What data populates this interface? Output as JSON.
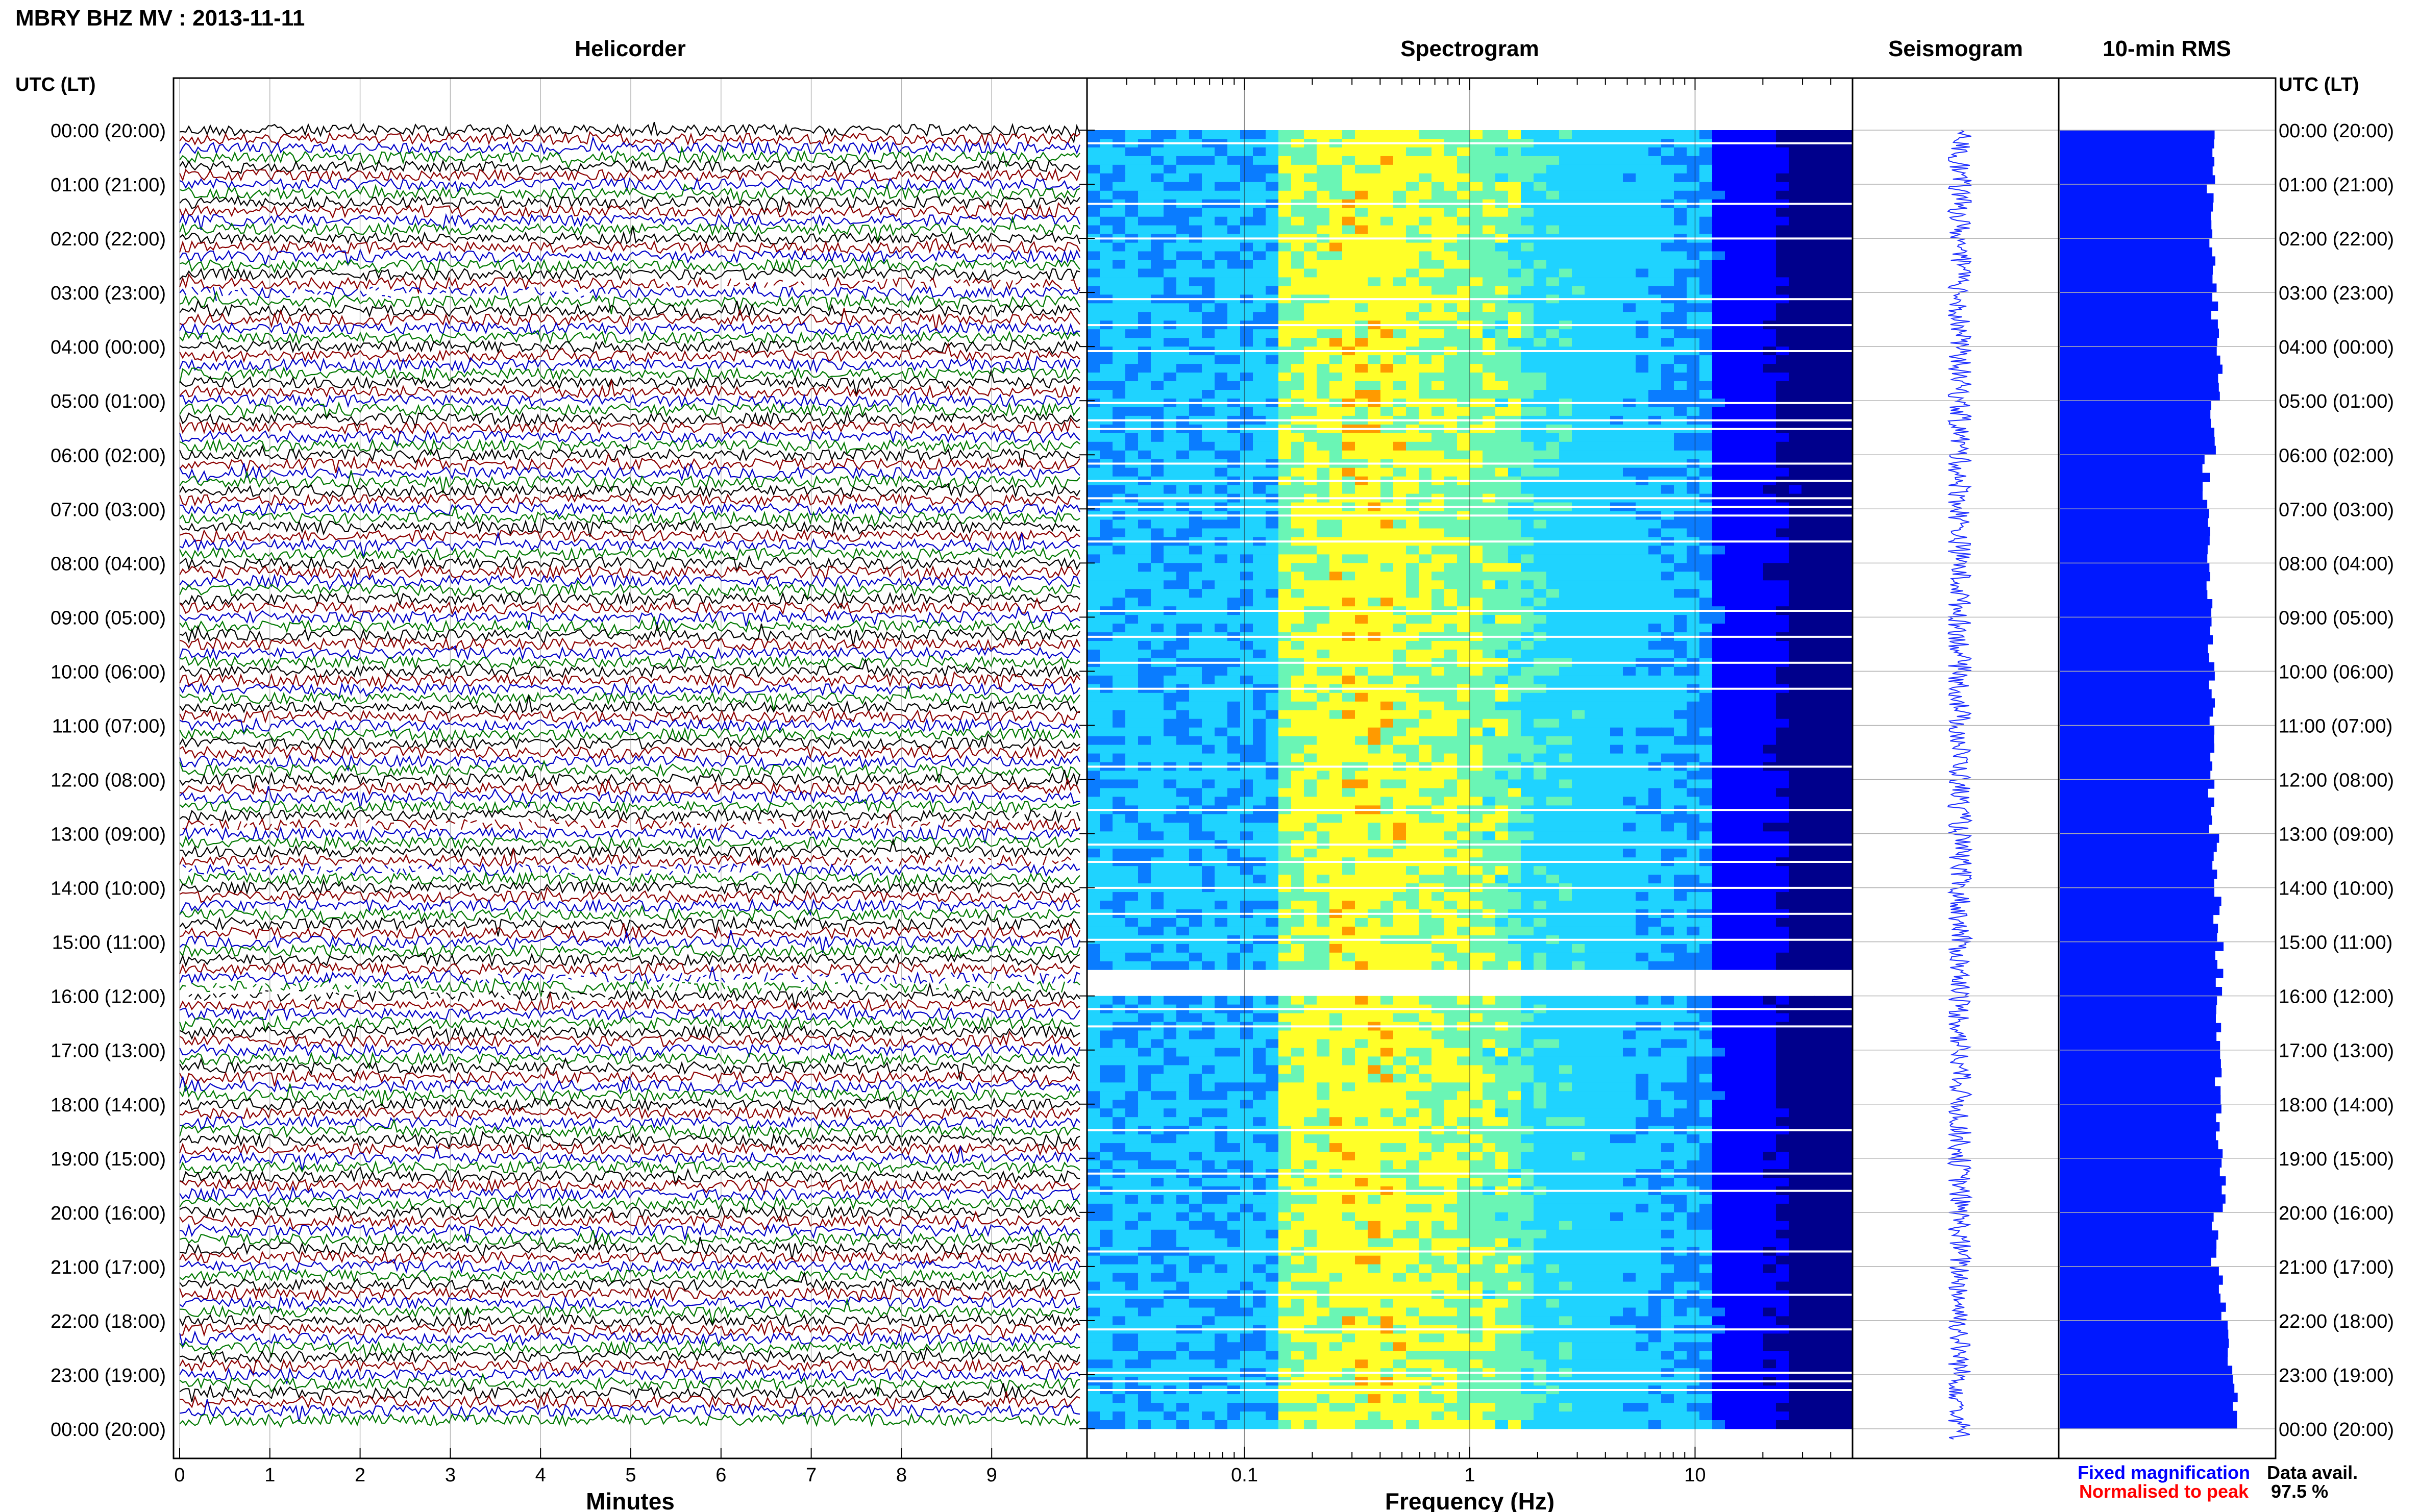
{
  "header": {
    "station_title": "MBRY BHZ MV : 2013-11-11",
    "utc_lt_label_left": "UTC (LT)",
    "utc_lt_label_right": "UTC (LT)"
  },
  "panels": {
    "helicorder_title": "Helicorder",
    "spectrogram_title": "Spectrogram",
    "seismogram_title": "Seismogram",
    "rms_title": "10-min RMS"
  },
  "time_labels": [
    "00:00 (20:00)",
    "01:00 (21:00)",
    "02:00 (22:00)",
    "03:00 (23:00)",
    "04:00 (00:00)",
    "05:00 (01:00)",
    "06:00 (02:00)",
    "07:00 (03:00)",
    "08:00 (04:00)",
    "09:00 (05:00)",
    "10:00 (06:00)",
    "11:00 (07:00)",
    "12:00 (08:00)",
    "13:00 (09:00)",
    "14:00 (10:00)",
    "15:00 (11:00)",
    "16:00 (12:00)",
    "17:00 (13:00)",
    "18:00 (14:00)",
    "19:00 (15:00)",
    "20:00 (16:00)",
    "21:00 (17:00)",
    "22:00 (18:00)",
    "23:00 (19:00)",
    "00:00 (20:00)"
  ],
  "legend": {
    "fixed_magnification": "Fixed magnification",
    "normalised_to_peak": "Normalised to peak",
    "data_avail_label": "Data avail.",
    "data_avail_value": "97.5 %"
  },
  "colors": {
    "trace_black": "#000000",
    "trace_red": "#8b0000",
    "trace_blue": "#0000c8",
    "trace_green": "#007800",
    "seismogram": "#1f2fff",
    "rms": "#0018ff",
    "fixed_magnification": "#0000ff",
    "normalised_to_peak": "#ff0000"
  },
  "chart_data": [
    {
      "type": "line",
      "panel": "Helicorder",
      "xlabel": "Minutes",
      "x_ticks": [
        "0",
        "1",
        "2",
        "3",
        "4",
        "5",
        "6",
        "7",
        "8",
        "9"
      ],
      "xlim": [
        0,
        10
      ],
      "rows": 144,
      "row_minutes": 10,
      "trace_colors": [
        "#000000",
        "#8b0000",
        "#0000c8",
        "#007800"
      ],
      "gaps_hours": [
        3,
        12.9,
        13.7,
        15.8,
        16
      ]
    },
    {
      "type": "heatmap",
      "panel": "Spectrogram",
      "xlabel": "Frequency (Hz)",
      "x_scale": "log",
      "xlim": [
        0.02,
        50
      ],
      "x_ticks": [
        "0.1",
        "1",
        "10"
      ],
      "x_tick_values": [
        0.1,
        1,
        10
      ],
      "peak_frequency_band_hz": [
        0.15,
        1.5
      ],
      "colormap": [
        "#00008c",
        "#0000ff",
        "#0a7cff",
        "#1fd3ff",
        "#6af5b5",
        "#ffff28",
        "#ff9a00",
        "#e81b00"
      ],
      "blank_hours": [
        15.45,
        15.85
      ]
    },
    {
      "type": "line",
      "panel": "Seismogram",
      "orientation": "vertical",
      "amplitude_scale": "fixed"
    },
    {
      "type": "bar",
      "panel": "10-min RMS",
      "orientation": "horizontal",
      "hours": [
        0,
        1,
        2,
        3,
        4,
        5,
        6,
        7,
        8,
        9,
        10,
        11,
        12,
        13,
        14,
        15,
        16,
        17,
        18,
        19,
        20,
        21,
        22,
        23
      ],
      "relative_values": [
        0.72,
        0.7,
        0.71,
        0.72,
        0.74,
        0.71,
        0.68,
        0.68,
        0.69,
        0.7,
        0.7,
        0.71,
        0.7,
        0.72,
        0.73,
        0.74,
        0.74,
        0.73,
        0.74,
        0.76,
        0.72,
        0.75,
        0.78,
        0.82
      ],
      "xlim": [
        0,
        1
      ]
    }
  ]
}
